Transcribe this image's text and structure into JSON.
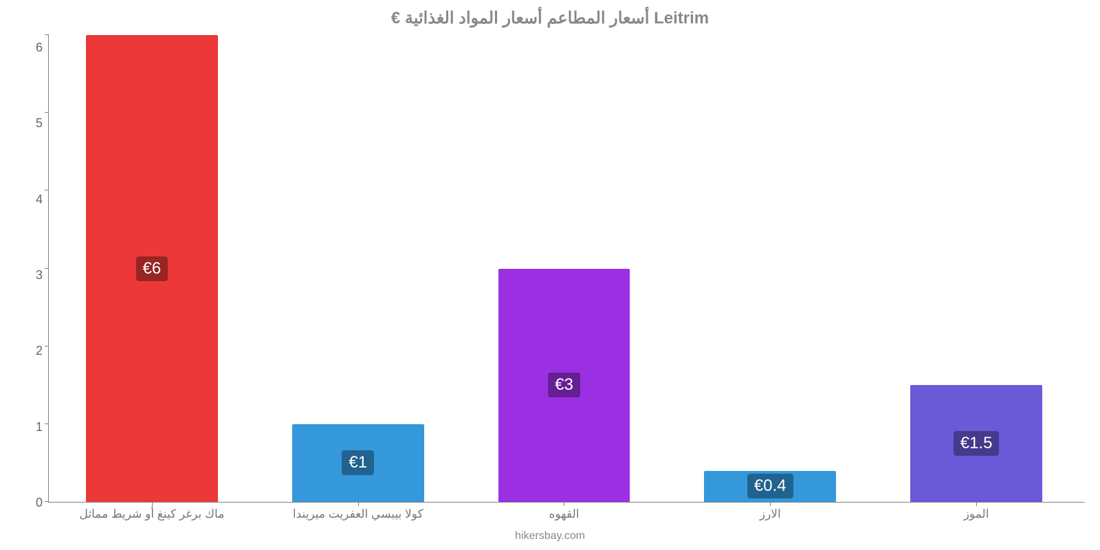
{
  "chart": {
    "type": "bar",
    "title": "€ أسعار المطاعم أسعار المواد الغذائية Leitrim",
    "title_fontsize": 24,
    "title_color": "#888888",
    "background_color": "#ffffff",
    "axis_color": "#808080",
    "xlabel_color": "#777777",
    "ylabel_color": "#666666",
    "label_fontsize": 18,
    "value_label_fontsize": 24,
    "value_label_bg": "rgba(0,0,0,0.35)",
    "value_label_text_color": "#ffffff",
    "bar_width": 0.64,
    "ylim": [
      0,
      6
    ],
    "ytick_step": 1,
    "yticks": [
      "6",
      "5",
      "4",
      "3",
      "2",
      "1",
      "0"
    ],
    "categories": [
      "ماك برغر كينغ أو شريط مماثل",
      "كولا بيبسي العفريت ميريندا",
      "القهوه",
      "الارز",
      "الموز"
    ],
    "values": [
      6,
      1,
      3,
      0.4,
      1.5
    ],
    "value_labels": [
      "€6",
      "€1",
      "€3",
      "€0.4",
      "€1.5"
    ],
    "bar_colors": [
      "#ec3838",
      "#3498db",
      "#9b30e2",
      "#3498db",
      "#6b5ad8"
    ],
    "attribution": "hikersbay.com"
  }
}
